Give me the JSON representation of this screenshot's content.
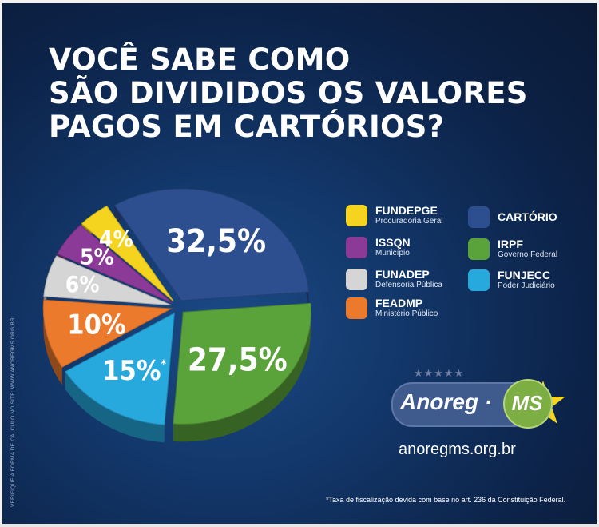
{
  "title": {
    "line1": "VOCÊ SABE COMO",
    "line2": "SÃO DIVIDIDOS OS VALORES",
    "line3": "PAGOS EM CARTÓRIOS?"
  },
  "chart_data": {
    "type": "pie",
    "title": "VOCÊ SABE COMO SÃO DIVIDIDOS OS VALORES PAGOS EM CARTÓRIOS?",
    "slices": [
      {
        "name": "CARTÓRIO",
        "value": 32.5,
        "label": "32,5%",
        "color": "#2d4f8f"
      },
      {
        "name": "IRPF",
        "value": 27.5,
        "label": "27,5%",
        "color": "#5aa33a"
      },
      {
        "name": "FUNJECC",
        "value": 15,
        "label": "15%",
        "note": "*",
        "color": "#27a9de"
      },
      {
        "name": "FEADMP",
        "value": 10,
        "label": "10%",
        "color": "#ec7a2c"
      },
      {
        "name": "FUNADEP",
        "value": 6,
        "label": "6%",
        "color": "#d5d5d5"
      },
      {
        "name": "ISSQN",
        "value": 5,
        "label": "5%",
        "color": "#8c3a97"
      },
      {
        "name": "FUNDEPGE",
        "value": 4,
        "label": "4%",
        "color": "#f4d41e"
      }
    ],
    "legend_position": "right"
  },
  "legend": {
    "items": [
      {
        "name": "FUNDEPGE",
        "sub": "Procuradoria Geral",
        "color": "#f4d41e"
      },
      {
        "name": "ISSQN",
        "sub": "Município",
        "color": "#8c3a97"
      },
      {
        "name": "FUNADEP",
        "sub": "Defensoria Pública",
        "color": "#d5d5d5"
      },
      {
        "name": "FEADMP",
        "sub": "Ministério Público",
        "color": "#ec7a2c"
      },
      {
        "name": "CARTÓRIO",
        "sub": "",
        "color": "#2d4f8f"
      },
      {
        "name": "IRPF",
        "sub": "Governo Federal",
        "color": "#5aa33a"
      },
      {
        "name": "FUNJECC",
        "sub": "Poder Judiciário",
        "color": "#27a9de"
      }
    ]
  },
  "logo": {
    "stars": "★★★★★",
    "text": "Anoreg",
    "dot": "·",
    "ms": "MS"
  },
  "website": "anoregms.org.br",
  "footnote": "*Taxa de fiscalização devida com base no art. 236 da Constituição Federal.",
  "side_note": "VERIFIQUE A FORMA DE CÁLCULO NO SITE: WWW.ANOREGMS.ORG.BR"
}
